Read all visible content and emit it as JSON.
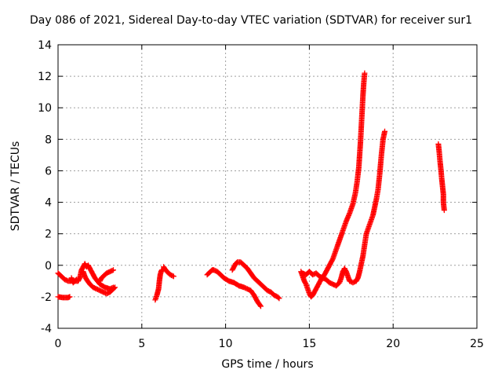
{
  "chart_data": {
    "type": "scatter",
    "title": "Day 086 of 2021, Sidereal Day-to-day VTEC variation (SDTVAR) for receiver sur1",
    "xlabel": "GPS time / hours",
    "ylabel": "SDTVAR / TECUs",
    "xlim": [
      0,
      25
    ],
    "ylim": [
      -4,
      14
    ],
    "xticks": [
      0,
      5,
      10,
      15,
      20,
      25
    ],
    "yticks": [
      -4,
      -2,
      0,
      2,
      4,
      6,
      8,
      10,
      12,
      14
    ],
    "grid": true,
    "marker": "plus",
    "color": "#ff0000",
    "series": [
      {
        "points": [
          [
            0.0,
            -0.5
          ],
          [
            0.2,
            -0.7
          ],
          [
            0.4,
            -0.9
          ],
          [
            0.6,
            -1.0
          ],
          [
            0.8,
            -1.0
          ],
          [
            1.0,
            -1.0
          ],
          [
            1.1,
            -0.9
          ]
        ]
      },
      {
        "points": [
          [
            0.0,
            -2.0
          ],
          [
            0.3,
            -2.05
          ],
          [
            0.6,
            -2.05
          ],
          [
            0.7,
            -2.0
          ]
        ]
      },
      {
        "points": [
          [
            0.8,
            -0.8
          ],
          [
            0.9,
            -1.1
          ],
          [
            1.0,
            -1.0
          ],
          [
            1.2,
            -1.0
          ],
          [
            1.3,
            -0.8
          ],
          [
            1.4,
            -0.3
          ],
          [
            1.5,
            -0.1
          ],
          [
            1.6,
            0.1
          ],
          [
            1.7,
            -0.1
          ],
          [
            1.8,
            0.0
          ],
          [
            1.9,
            -0.2
          ],
          [
            2.0,
            -0.4
          ],
          [
            2.2,
            -0.8
          ],
          [
            2.5,
            -1.2
          ],
          [
            2.8,
            -1.4
          ],
          [
            3.1,
            -1.5
          ],
          [
            3.3,
            -1.4
          ]
        ]
      },
      {
        "points": [
          [
            1.5,
            -0.4
          ],
          [
            1.6,
            -0.7
          ],
          [
            1.7,
            -0.9
          ],
          [
            1.9,
            -1.2
          ],
          [
            2.1,
            -1.4
          ],
          [
            2.3,
            -1.5
          ],
          [
            2.5,
            -1.6
          ],
          [
            2.7,
            -1.7
          ],
          [
            2.9,
            -1.8
          ],
          [
            3.1,
            -1.7
          ],
          [
            3.3,
            -1.5
          ],
          [
            3.4,
            -1.4
          ]
        ]
      },
      {
        "points": [
          [
            2.5,
            -1.0
          ],
          [
            2.6,
            -0.8
          ],
          [
            2.7,
            -0.7
          ],
          [
            2.8,
            -0.6
          ],
          [
            2.9,
            -0.5
          ],
          [
            3.1,
            -0.4
          ],
          [
            3.3,
            -0.3
          ]
        ]
      },
      {
        "points": [
          [
            5.8,
            -2.2
          ],
          [
            5.9,
            -1.9
          ],
          [
            6.0,
            -1.5
          ],
          [
            6.05,
            -1.0
          ],
          [
            6.1,
            -0.6
          ],
          [
            6.15,
            -0.4
          ],
          [
            6.2,
            -0.3
          ]
        ]
      },
      {
        "points": [
          [
            6.3,
            -0.1
          ],
          [
            6.35,
            -0.2
          ],
          [
            6.5,
            -0.4
          ],
          [
            6.7,
            -0.6
          ],
          [
            6.9,
            -0.7
          ]
        ]
      },
      {
        "points": [
          [
            8.9,
            -0.6
          ],
          [
            9.0,
            -0.5
          ],
          [
            9.1,
            -0.4
          ],
          [
            9.2,
            -0.3
          ],
          [
            9.3,
            -0.3
          ],
          [
            9.5,
            -0.4
          ],
          [
            9.7,
            -0.6
          ],
          [
            9.9,
            -0.8
          ],
          [
            10.2,
            -1.0
          ],
          [
            10.5,
            -1.1
          ],
          [
            10.8,
            -1.3
          ],
          [
            11.1,
            -1.4
          ],
          [
            11.3,
            -1.5
          ],
          [
            11.5,
            -1.6
          ],
          [
            11.7,
            -1.9
          ],
          [
            11.9,
            -2.3
          ],
          [
            12.1,
            -2.6
          ]
        ]
      },
      {
        "points": [
          [
            10.4,
            -0.3
          ],
          [
            10.5,
            -0.1
          ],
          [
            10.6,
            0.1
          ],
          [
            10.7,
            0.2
          ],
          [
            10.9,
            0.2
          ],
          [
            11.1,
            0.0
          ],
          [
            11.3,
            -0.2
          ],
          [
            11.5,
            -0.5
          ],
          [
            11.7,
            -0.8
          ],
          [
            11.9,
            -1.0
          ],
          [
            12.1,
            -1.2
          ],
          [
            12.3,
            -1.4
          ],
          [
            12.5,
            -1.6
          ],
          [
            12.7,
            -1.7
          ],
          [
            12.9,
            -1.9
          ],
          [
            13.1,
            -2.0
          ],
          [
            13.2,
            -2.1
          ]
        ]
      },
      {
        "points": [
          [
            14.5,
            -0.4
          ],
          [
            14.6,
            -0.7
          ],
          [
            14.7,
            -1.0
          ],
          [
            14.8,
            -1.2
          ],
          [
            14.9,
            -1.5
          ],
          [
            15.0,
            -1.8
          ],
          [
            15.1,
            -2.0
          ],
          [
            15.2,
            -1.9
          ],
          [
            15.3,
            -1.7
          ],
          [
            15.5,
            -1.3
          ],
          [
            15.7,
            -0.9
          ],
          [
            15.9,
            -0.6
          ],
          [
            16.0,
            -0.4
          ],
          [
            16.1,
            -0.2
          ],
          [
            16.3,
            0.2
          ],
          [
            16.4,
            0.4
          ],
          [
            16.6,
            1.0
          ],
          [
            16.8,
            1.6
          ],
          [
            17.0,
            2.2
          ],
          [
            17.2,
            2.8
          ],
          [
            17.4,
            3.3
          ],
          [
            17.6,
            3.9
          ],
          [
            17.75,
            4.6
          ],
          [
            17.85,
            5.3
          ],
          [
            17.95,
            6.2
          ],
          [
            18.0,
            7.0
          ],
          [
            18.05,
            7.8
          ],
          [
            18.1,
            8.8
          ],
          [
            18.15,
            9.8
          ],
          [
            18.2,
            10.8
          ],
          [
            18.25,
            11.6
          ],
          [
            18.3,
            12.2
          ]
        ]
      },
      {
        "points": [
          [
            14.6,
            -0.5
          ],
          [
            14.8,
            -0.6
          ],
          [
            15.0,
            -0.4
          ],
          [
            15.2,
            -0.6
          ],
          [
            15.4,
            -0.5
          ],
          [
            15.6,
            -0.7
          ],
          [
            15.8,
            -0.8
          ],
          [
            16.0,
            -0.9
          ],
          [
            16.2,
            -1.1
          ],
          [
            16.4,
            -1.2
          ],
          [
            16.6,
            -1.3
          ],
          [
            16.8,
            -1.1
          ],
          [
            16.9,
            -0.8
          ],
          [
            17.0,
            -0.4
          ],
          [
            17.1,
            -0.2
          ],
          [
            17.2,
            -0.4
          ],
          [
            17.3,
            -0.7
          ],
          [
            17.4,
            -1.0
          ],
          [
            17.6,
            -1.1
          ],
          [
            17.8,
            -1.0
          ],
          [
            17.9,
            -0.8
          ],
          [
            18.0,
            -0.4
          ],
          [
            18.1,
            0.1
          ],
          [
            18.2,
            0.6
          ],
          [
            18.3,
            1.3
          ],
          [
            18.4,
            2.0
          ],
          [
            18.6,
            2.6
          ],
          [
            18.8,
            3.2
          ],
          [
            18.9,
            3.7
          ],
          [
            19.0,
            4.2
          ],
          [
            19.1,
            4.8
          ],
          [
            19.2,
            5.8
          ],
          [
            19.3,
            7.0
          ],
          [
            19.4,
            8.0
          ],
          [
            19.5,
            8.5
          ]
        ]
      },
      {
        "points": [
          [
            22.7,
            7.7
          ],
          [
            22.75,
            7.2
          ],
          [
            22.8,
            6.6
          ],
          [
            22.85,
            6.1
          ],
          [
            22.9,
            5.5
          ],
          [
            22.95,
            5.0
          ],
          [
            23.0,
            4.5
          ],
          [
            23.0,
            4.0
          ],
          [
            23.05,
            3.5
          ]
        ]
      }
    ]
  }
}
